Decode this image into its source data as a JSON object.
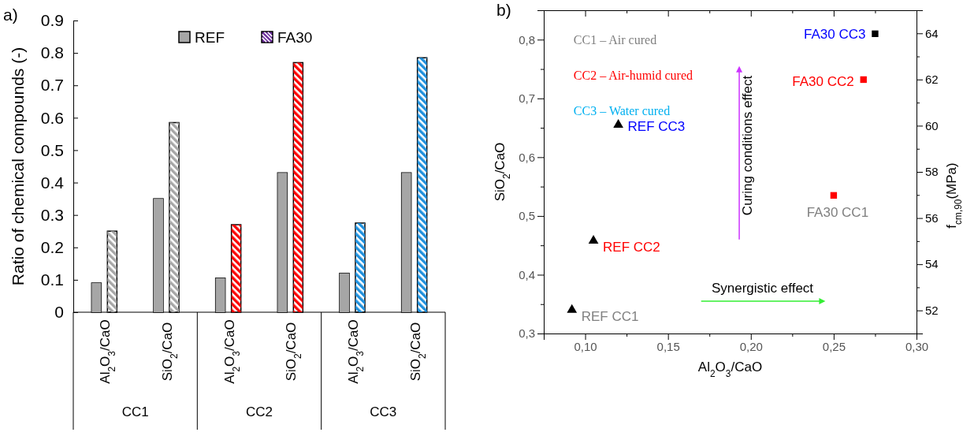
{
  "chart_data": [
    {
      "type": "bar",
      "ylabel": "Ratio of chemical compounds (-)",
      "categories": [
        "Al$_{2}$O$_{3}$/CaO",
        "SiO$_{2}$/CaO",
        "Al$_{2}$O$_{3}$/CaO",
        "SiO$_{2}$/CaO",
        "Al$_{2}$O$_{3}$/CaO",
        "SiO$_{2}$/CaO"
      ],
      "series": [
        {
          "name": "REF",
          "color": "#a6a6a6",
          "values": [
            0.09,
            0.35,
            0.105,
            0.43,
            0.12,
            0.43
          ]
        },
        {
          "name": "FA30",
          "color": "#7030a0",
          "colors": [
            "#a6a6a6",
            "#a6a6a6",
            "#ff0000",
            "#ff0000",
            "#1e90dd",
            "#1e90dd"
          ],
          "values": [
            0.25,
            0.585,
            0.27,
            0.77,
            0.275,
            0.785
          ]
        }
      ],
      "ylim": [
        0,
        0.9
      ],
      "yticks": [
        0,
        0.1,
        0.2,
        0.3,
        0.4,
        0.5,
        0.6,
        0.7,
        0.8,
        0.9
      ],
      "legend": "top",
      "annotations": [
        "a)",
        "CC1",
        "CC2",
        "CC3"
      ]
    },
    {
      "type": "scatter",
      "xlabel": "Al$_{2}$O$_{3}$/CaO",
      "ylabel": "SiO$_{2}$/CaO",
      "y2label": "f$_{cm,90}$(MPa)",
      "series": [
        {
          "marker": "triangle",
          "color": "#000000",
          "x": [
            0.092,
            0.105,
            0.12
          ],
          "values": [
            0.34,
            0.458,
            0.655
          ]
        },
        {
          "marker": "square",
          "colors": [
            "#ff0000",
            "#ff0000",
            "#000000"
          ],
          "x": [
            0.25,
            0.268,
            0.275
          ],
          "values": [
            0.535,
            0.732,
            0.81
          ]
        }
      ],
      "xlim": [
        0.075,
        0.3
      ],
      "xticks": [
        {
          "value": 0.075,
          "label": null
        },
        {
          "value": 0.1,
          "label": "0,10"
        },
        {
          "value": 0.125,
          "label": null
        },
        {
          "value": 0.15,
          "label": "0,15"
        },
        {
          "value": 0.175,
          "label": null
        },
        {
          "value": 0.2,
          "label": "0,20"
        },
        {
          "value": 0.225,
          "label": null
        },
        {
          "value": 0.25,
          "label": "0,25"
        },
        {
          "value": 0.275,
          "label": null
        },
        {
          "value": 0.3,
          "label": "0,30"
        }
      ],
      "ylim": [
        0.3,
        0.85
      ],
      "yticks": [
        {
          "value": 0.3,
          "label": "0,3"
        },
        {
          "value": 0.35,
          "label": null
        },
        {
          "value": 0.4,
          "label": "0,4"
        },
        {
          "value": 0.45,
          "label": null
        },
        {
          "value": 0.5,
          "label": "0,5"
        },
        {
          "value": 0.55,
          "label": null
        },
        {
          "value": 0.6,
          "label": "0,6"
        },
        {
          "value": 0.65,
          "label": null
        },
        {
          "value": 0.7,
          "label": "0,7"
        },
        {
          "value": 0.75,
          "label": null
        },
        {
          "value": 0.8,
          "label": "0,8"
        }
      ],
      "y2lim": [
        51,
        65
      ],
      "y2ticks": [
        {
          "value": 51,
          "label": null
        },
        52,
        {
          "value": 53,
          "label": null
        },
        54,
        {
          "value": 55,
          "label": null
        },
        56,
        {
          "value": 57,
          "label": null
        },
        58,
        {
          "value": 59,
          "label": null
        },
        60,
        {
          "value": 61,
          "label": null
        },
        62,
        {
          "value": 63,
          "label": null
        },
        64
      ],
      "annotations": [
        "b)",
        "CC1 – Air cured",
        "CC2 – Air-humid cured",
        "CC3 – Water cured",
        "Curing conditions effect",
        "Synergistic effect",
        {
          "text": "REF CC1",
          "x": 0.092,
          "y": 0.34
        },
        {
          "text": "REF CC2",
          "x": 0.105,
          "y": 0.458
        },
        {
          "text": "REF CC3",
          "x": 0.12,
          "y": 0.655
        },
        {
          "text": "FA30 CC1",
          "x": 0.25,
          "y": 0.535
        },
        {
          "text": "FA30 CC2",
          "x": 0.268,
          "y": 0.732
        },
        {
          "text": "FA30 CC3",
          "x": 0.275,
          "y": 0.81
        }
      ]
    }
  ]
}
